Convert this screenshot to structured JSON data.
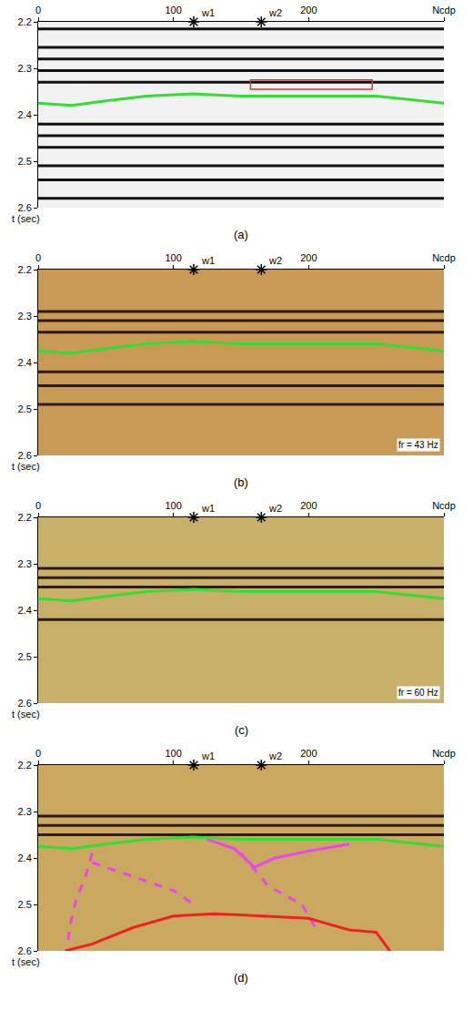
{
  "chart_data": [
    {
      "type": "line",
      "caption": "(a)",
      "color": "#f2f2f2",
      "xlim": [
        0,
        300
      ],
      "xticks": [
        0,
        100,
        200,
        {
          "value": 300,
          "label": "Ncdp"
        }
      ],
      "ylim": [
        2.6,
        2.2
      ],
      "yticks": [
        2.2,
        2.3,
        2.4,
        2.5,
        2.6
      ],
      "y_label": "t (sec)",
      "wells": [
        {
          "name": "w1",
          "x": 115
        },
        {
          "name": "w2",
          "x": 165
        }
      ],
      "reflectors": {
        "color": "#111111",
        "values": [
          2.215,
          2.255,
          2.28,
          2.305,
          2.33,
          2.42,
          2.445,
          2.47,
          2.51,
          2.54,
          2.58
        ]
      },
      "box": {
        "x": [
          157,
          247
        ],
        "y": [
          2.325,
          2.345
        ],
        "color": "#dd3333"
      },
      "series": [
        {
          "color": "#33dd33",
          "line_style": "solid",
          "x": [
            0,
            25,
            50,
            80,
            115,
            150,
            200,
            250,
            300
          ],
          "values": [
            2.375,
            2.38,
            2.37,
            2.36,
            2.355,
            2.36,
            2.36,
            2.36,
            2.375
          ]
        }
      ]
    },
    {
      "type": "line",
      "caption": "(b)",
      "color": "#c89a55",
      "annotation": "fr = 43 Hz",
      "xlim": [
        0,
        300
      ],
      "xticks": [
        0,
        100,
        200,
        {
          "value": 300,
          "label": "Ncdp"
        }
      ],
      "ylim": [
        2.6,
        2.2
      ],
      "yticks": [
        2.2,
        2.3,
        2.4,
        2.5,
        2.6
      ],
      "y_label": "t (sec)",
      "wells": [
        {
          "name": "w1",
          "x": 115
        },
        {
          "name": "w2",
          "x": 165
        }
      ],
      "reflectors": {
        "color": "#2a1a10",
        "values": [
          2.29,
          2.31,
          2.335,
          2.42,
          2.45,
          2.49
        ]
      },
      "series": [
        {
          "color": "#33dd33",
          "line_style": "solid",
          "x": [
            0,
            25,
            50,
            80,
            115,
            150,
            200,
            250,
            300
          ],
          "values": [
            2.375,
            2.38,
            2.37,
            2.36,
            2.355,
            2.36,
            2.36,
            2.36,
            2.375
          ]
        }
      ]
    },
    {
      "type": "line",
      "caption": "(c)",
      "color": "#c9b06a",
      "annotation": "fr = 60 Hz",
      "xlim": [
        0,
        300
      ],
      "xticks": [
        0,
        100,
        200,
        {
          "value": 300,
          "label": "Ncdp"
        }
      ],
      "ylim": [
        2.6,
        2.2
      ],
      "yticks": [
        2.2,
        2.3,
        2.4,
        2.5,
        2.6
      ],
      "y_label": "t (sec)",
      "wells": [
        {
          "name": "w1",
          "x": 115
        },
        {
          "name": "w2",
          "x": 165
        }
      ],
      "reflectors": {
        "color": "#2a1a10",
        "values": [
          2.31,
          2.33,
          2.35,
          2.42
        ]
      },
      "series": [
        {
          "color": "#33dd33",
          "line_style": "solid",
          "x": [
            0,
            25,
            50,
            80,
            115,
            150,
            200,
            250,
            300
          ],
          "values": [
            2.375,
            2.38,
            2.37,
            2.36,
            2.355,
            2.36,
            2.36,
            2.36,
            2.375
          ]
        }
      ]
    },
    {
      "type": "line",
      "caption": "(d)",
      "color": "#c9a860",
      "xlim": [
        0,
        300
      ],
      "xticks": [
        0,
        100,
        200,
        {
          "value": 300,
          "label": "Ncdp"
        }
      ],
      "ylim": [
        2.6,
        2.2
      ],
      "yticks": [
        2.2,
        2.3,
        2.4,
        2.5,
        2.6
      ],
      "y_label": "t (sec)",
      "wells": [
        {
          "name": "w1",
          "x": 115
        },
        {
          "name": "w2",
          "x": 165
        }
      ],
      "reflectors": {
        "color": "#2a1a10",
        "values": [
          2.31,
          2.33,
          2.35
        ]
      },
      "series": [
        {
          "color": "#33dd33",
          "line_style": "solid",
          "x": [
            0,
            25,
            50,
            80,
            115,
            150,
            200,
            250,
            300
          ],
          "values": [
            2.375,
            2.38,
            2.37,
            2.36,
            2.355,
            2.36,
            2.36,
            2.36,
            2.375
          ]
        },
        {
          "color": "#ee44ee",
          "line_style": "dash",
          "x": [
            40,
            35,
            28,
            24,
            22
          ],
          "values": [
            2.39,
            2.44,
            2.49,
            2.54,
            2.58
          ]
        },
        {
          "color": "#ee44ee",
          "line_style": "dash",
          "x": [
            40,
            60,
            80,
            100,
            115
          ],
          "values": [
            2.41,
            2.43,
            2.45,
            2.47,
            2.5
          ]
        },
        {
          "color": "#ee44ee",
          "line_style": "solid",
          "x": [
            125,
            145,
            160,
            175,
            200,
            230
          ],
          "values": [
            2.36,
            2.38,
            2.42,
            2.4,
            2.385,
            2.37
          ]
        },
        {
          "color": "#ee44ee",
          "line_style": "dash",
          "x": [
            150,
            170,
            195,
            205
          ],
          "values": [
            2.39,
            2.46,
            2.5,
            2.55
          ]
        },
        {
          "color": "#ee2222",
          "line_style": "solid",
          "x": [
            20,
            40,
            70,
            100,
            130,
            170,
            200,
            230,
            250,
            260
          ],
          "values": [
            2.6,
            2.585,
            2.55,
            2.525,
            2.52,
            2.525,
            2.53,
            2.555,
            2.56,
            2.6
          ]
        }
      ]
    }
  ]
}
